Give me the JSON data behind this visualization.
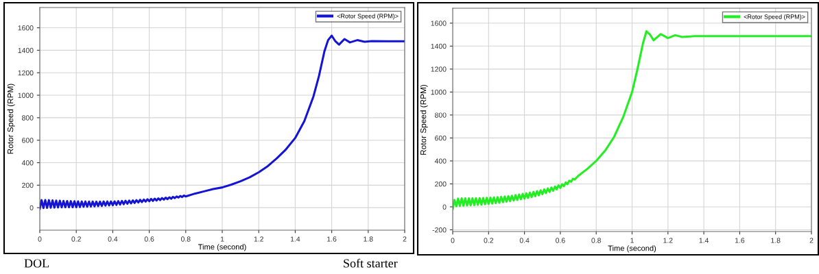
{
  "chart_data": [
    {
      "type": "line",
      "xlabel": "Time (second)",
      "ylabel": "Rotor Speed (RPM)",
      "xlim": [
        0,
        2
      ],
      "ylim": [
        -200,
        1780
      ],
      "xticks": [
        0,
        0.2,
        0.4,
        0.6,
        0.8,
        1,
        1.2,
        1.4,
        1.6,
        1.8,
        2
      ],
      "yticks": [
        0,
        200,
        400,
        600,
        800,
        1000,
        1200,
        1400,
        1600
      ],
      "grid": true,
      "legend": "top right",
      "annotations": [
        "DOL"
      ],
      "series": [
        {
          "name": "<Rotor Speed (RPM)>",
          "color": "#1414d2",
          "x": [
            0,
            0.01,
            0.02,
            0.03,
            0.04,
            0.05,
            0.06,
            0.07,
            0.08,
            0.09,
            0.1,
            0.11,
            0.12,
            0.13,
            0.14,
            0.15,
            0.16,
            0.17,
            0.18,
            0.19,
            0.2,
            0.21,
            0.22,
            0.23,
            0.24,
            0.25,
            0.26,
            0.27,
            0.28,
            0.29,
            0.3,
            0.31,
            0.32,
            0.33,
            0.34,
            0.35,
            0.36,
            0.37,
            0.38,
            0.39,
            0.4,
            0.41,
            0.42,
            0.43,
            0.44,
            0.45,
            0.46,
            0.47,
            0.48,
            0.49,
            0.5,
            0.51,
            0.52,
            0.53,
            0.54,
            0.55,
            0.56,
            0.57,
            0.58,
            0.59,
            0.6,
            0.61,
            0.62,
            0.63,
            0.64,
            0.65,
            0.66,
            0.67,
            0.68,
            0.69,
            0.7,
            0.71,
            0.72,
            0.73,
            0.74,
            0.75,
            0.76,
            0.77,
            0.78,
            0.79,
            0.8,
            0.85,
            0.9,
            0.95,
            1.0,
            1.05,
            1.1,
            1.15,
            1.2,
            1.25,
            1.3,
            1.35,
            1.4,
            1.45,
            1.5,
            1.53,
            1.56,
            1.58,
            1.6,
            1.62,
            1.64,
            1.67,
            1.7,
            1.74,
            1.78,
            1.82,
            1.9,
            2.0
          ],
          "values": [
            -10,
            67,
            -3,
            68,
            -2,
            67,
            0,
            65,
            1,
            63,
            2,
            62,
            3,
            60,
            4,
            59,
            4,
            58,
            4,
            57,
            4,
            56,
            6,
            55,
            8,
            55,
            9,
            54,
            10,
            54,
            12,
            54,
            14,
            54,
            16,
            55,
            18,
            55,
            20,
            55,
            22,
            56,
            25,
            58,
            28,
            60,
            31,
            62,
            35,
            63,
            38,
            65,
            42,
            67,
            46,
            70,
            50,
            72,
            54,
            75,
            57,
            78,
            60,
            80,
            64,
            83,
            68,
            86,
            72,
            89,
            76,
            92,
            80,
            96,
            85,
            100,
            90,
            104,
            95,
            108,
            100,
            125,
            145,
            165,
            180,
            205,
            235,
            270,
            315,
            370,
            440,
            520,
            620,
            770,
            990,
            1170,
            1390,
            1490,
            1530,
            1480,
            1450,
            1500,
            1470,
            1490,
            1475,
            1482,
            1480,
            1480
          ]
        }
      ]
    },
    {
      "type": "line",
      "xlabel": "Time (second)",
      "ylabel": "Rotor Speed (RPM)",
      "xlim": [
        0,
        2
      ],
      "ylim": [
        -215,
        1730
      ],
      "xticks": [
        0,
        0.2,
        0.4,
        0.6,
        0.8,
        1,
        1.2,
        1.4,
        1.6,
        1.8,
        2
      ],
      "yticks": [
        -200,
        0,
        200,
        400,
        600,
        800,
        1000,
        1200,
        1400,
        1600
      ],
      "grid": true,
      "legend": "top right",
      "annotations": [
        "Soft starter"
      ],
      "series": [
        {
          "name": "<Rotor Speed (RPM)>",
          "color": "#22ee22",
          "x": [
            0,
            0.01,
            0.02,
            0.03,
            0.04,
            0.05,
            0.06,
            0.07,
            0.08,
            0.09,
            0.1,
            0.11,
            0.12,
            0.13,
            0.14,
            0.15,
            0.16,
            0.17,
            0.18,
            0.19,
            0.2,
            0.21,
            0.22,
            0.23,
            0.24,
            0.25,
            0.26,
            0.27,
            0.28,
            0.29,
            0.3,
            0.31,
            0.32,
            0.33,
            0.34,
            0.35,
            0.36,
            0.37,
            0.38,
            0.39,
            0.4,
            0.41,
            0.42,
            0.43,
            0.44,
            0.45,
            0.46,
            0.47,
            0.48,
            0.49,
            0.5,
            0.51,
            0.52,
            0.53,
            0.54,
            0.55,
            0.56,
            0.57,
            0.58,
            0.59,
            0.6,
            0.61,
            0.62,
            0.63,
            0.64,
            0.65,
            0.66,
            0.67,
            0.68,
            0.7,
            0.75,
            0.8,
            0.85,
            0.9,
            0.95,
            1.0,
            1.03,
            1.06,
            1.08,
            1.1,
            1.12,
            1.16,
            1.2,
            1.24,
            1.28,
            1.35,
            2.0
          ],
          "values": [
            -20,
            60,
            5,
            72,
            8,
            74,
            10,
            74,
            12,
            74,
            14,
            75,
            15,
            75,
            17,
            76,
            19,
            77,
            22,
            79,
            25,
            80,
            28,
            82,
            32,
            84,
            35,
            87,
            40,
            90,
            45,
            93,
            50,
            97,
            55,
            102,
            60,
            107,
            66,
            112,
            72,
            118,
            78,
            124,
            85,
            130,
            93,
            137,
            100,
            144,
            110,
            152,
            120,
            160,
            130,
            168,
            140,
            177,
            152,
            187,
            165,
            198,
            180,
            212,
            198,
            228,
            218,
            245,
            238,
            270,
            330,
            400,
            490,
            610,
            780,
            1000,
            1200,
            1420,
            1530,
            1500,
            1450,
            1505,
            1470,
            1495,
            1480,
            1487,
            1487
          ]
        }
      ]
    }
  ]
}
